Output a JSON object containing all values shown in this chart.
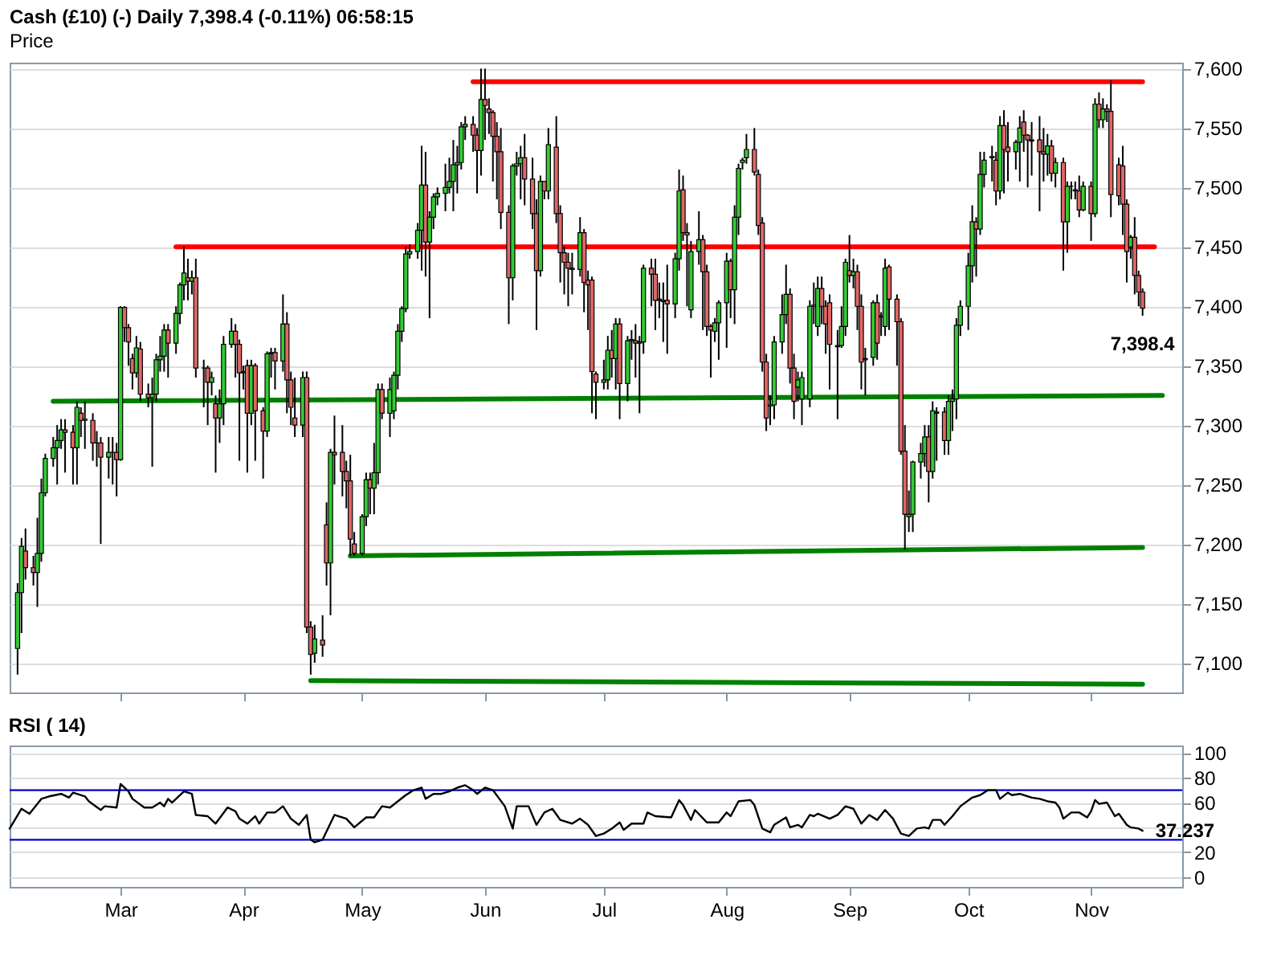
{
  "chart_data": [
    {
      "type": "candlestick",
      "title": "Cash (£10) (-)   Daily   7,398.4 (-0.11%)   06:58:15",
      "subtitle": "Price",
      "x": [
        "--02-03",
        "--02-04",
        "--02-05",
        "--02-07",
        "--02-08",
        "--02-09",
        "--02-10",
        "--02-12",
        "--02-13",
        "--02-14",
        "--02-15",
        "--02-17",
        "--02-18",
        "--02-19",
        "--02-20",
        "--02-22",
        "--02-23",
        "--02-24",
        "--02-26",
        "--02-27",
        "--02-28",
        "--03-01",
        "--03-02",
        "--03-03",
        "--03-04",
        "--03-05",
        "--03-06",
        "--03-08",
        "--03-09",
        "--03-10",
        "--03-11",
        "--03-12",
        "--03-13",
        "--03-15",
        "--03-16",
        "--03-17",
        "--03-18",
        "--03-19",
        "--03-20",
        "--03-22",
        "--03-23",
        "--03-24",
        "--03-25",
        "--03-26",
        "--03-27",
        "--03-29",
        "--03-30",
        "--03-31",
        "--04-01",
        "--04-02",
        "--04-03",
        "--04-04",
        "--04-06",
        "--04-07",
        "--04-08",
        "--04-09",
        "--04-11",
        "--04-12",
        "--04-13",
        "--04-14",
        "--04-16",
        "--04-17",
        "--04-18",
        "--04-19",
        "--04-21",
        "--04-22",
        "--04-23",
        "--04-24",
        "--04-26",
        "--04-27",
        "--04-28",
        "--04-29",
        "--05-01",
        "--05-02",
        "--05-03",
        "--05-04",
        "--05-05",
        "--05-06",
        "--05-08",
        "--05-09",
        "--05-10",
        "--05-11",
        "--05-12",
        "--05-13",
        "--05-15",
        "--05-16",
        "--05-17",
        "--05-18",
        "--05-19",
        "--05-20",
        "--05-22",
        "--05-23",
        "--05-24",
        "--05-25",
        "--05-26",
        "--05-27",
        "--05-29",
        "--05-30",
        "--05-31",
        "--06-01",
        "--06-02",
        "--06-03",
        "--06-04",
        "--06-05",
        "--06-07",
        "--06-08",
        "--06-09",
        "--06-10",
        "--06-11",
        "--06-13",
        "--06-14",
        "--06-15",
        "--06-16",
        "--06-17",
        "--06-19",
        "--06-20",
        "--06-21",
        "--06-22",
        "--06-23",
        "--06-25",
        "--06-26",
        "--06-27",
        "--06-28",
        "--06-29",
        "--07-01",
        "--07-02",
        "--07-03",
        "--07-04",
        "--07-05",
        "--07-07",
        "--07-08",
        "--07-09",
        "--07-10",
        "--07-11",
        "--07-13",
        "--07-14",
        "--07-15",
        "--07-16",
        "--07-17",
        "--07-19",
        "--07-20",
        "--07-21",
        "--07-22",
        "--07-23",
        "--07-25",
        "--07-26",
        "--07-27",
        "--07-28",
        "--07-29",
        "--07-30",
        "--08-01",
        "--08-02",
        "--08-03",
        "--08-04",
        "--08-05",
        "--08-06",
        "--08-08",
        "--08-09",
        "--08-10",
        "--08-11",
        "--08-12",
        "--08-13",
        "--08-15",
        "--08-16",
        "--08-17",
        "--08-18",
        "--08-19",
        "--08-20",
        "--08-22",
        "--08-23",
        "--08-24",
        "--08-25",
        "--08-26",
        "--08-27",
        "--08-29",
        "--08-30",
        "--08-31",
        "--09-01",
        "--09-02",
        "--09-03",
        "--09-04",
        "--09-05",
        "--09-07",
        "--09-08",
        "--09-09",
        "--09-10",
        "--09-11",
        "--09-13",
        "--09-14",
        "--09-15",
        "--09-16",
        "--09-17",
        "--09-19",
        "--09-20",
        "--09-21",
        "--09-22",
        "--09-23",
        "--09-25",
        "--09-26",
        "--09-27",
        "--09-28",
        "--09-29",
        "--10-01",
        "--10-02",
        "--10-03",
        "--10-04",
        "--10-05",
        "--10-07",
        "--10-08",
        "--10-09",
        "--10-10",
        "--10-11",
        "--10-13",
        "--10-14",
        "--10-15",
        "--10-16",
        "--10-17",
        "--10-19",
        "--10-20",
        "--10-21",
        "--10-22",
        "--10-23",
        "--10-25",
        "--10-26",
        "--10-27",
        "--10-28",
        "--10-29",
        "--10-30",
        "--11-01",
        "--11-02",
        "--11-03",
        "--11-04",
        "--11-05",
        "--11-06",
        "--11-08",
        "--11-09",
        "--11-10",
        "--11-11",
        "--11-12",
        "--11-13",
        "--11-14"
      ],
      "ohlc": [
        [
          7112,
          7167,
          7090,
          7159
        ],
        [
          7159,
          7205,
          7125,
          7198
        ],
        [
          7194,
          7213,
          7170,
          7180
        ],
        [
          7180,
          7190,
          7165,
          7176
        ],
        [
          7176,
          7222,
          7147,
          7192
        ],
        [
          7192,
          7255,
          7185,
          7243
        ],
        [
          7243,
          7276,
          7240,
          7272
        ],
        [
          7272,
          7290,
          7265,
          7281
        ],
        [
          7281,
          7300,
          7250,
          7287
        ],
        [
          7287,
          7305,
          7280,
          7296
        ],
        [
          7296,
          7305,
          7260,
          7294
        ],
        [
          7294,
          7300,
          7250,
          7281
        ],
        [
          7281,
          7320,
          7250,
          7315
        ],
        [
          7310,
          7315,
          7290,
          7304
        ],
        [
          7304,
          7320,
          7280,
          7305
        ],
        [
          7304,
          7310,
          7270,
          7285
        ],
        [
          7285,
          7295,
          7265,
          7285
        ],
        [
          7285,
          7290,
          7200,
          7273
        ],
        [
          7273,
          7290,
          7255,
          7277
        ],
        [
          7277,
          7290,
          7250,
          7277
        ],
        [
          7277,
          7285,
          7240,
          7271
        ],
        [
          7271,
          7400,
          7270,
          7399
        ],
        [
          7399,
          7400,
          7370,
          7382
        ],
        [
          7382,
          7385,
          7350,
          7370
        ],
        [
          7356,
          7360,
          7330,
          7344
        ],
        [
          7344,
          7375,
          7340,
          7365
        ],
        [
          7364,
          7370,
          7320,
          7326
        ],
        [
          7326,
          7335,
          7315,
          7323
        ],
        [
          7323,
          7340,
          7265,
          7326
        ],
        [
          7326,
          7360,
          7320,
          7355
        ],
        [
          7355,
          7375,
          7345,
          7358
        ],
        [
          7358,
          7385,
          7345,
          7380
        ],
        [
          7380,
          7385,
          7340,
          7369
        ],
        [
          7369,
          7400,
          7360,
          7394
        ],
        [
          7394,
          7420,
          7385,
          7418
        ],
        [
          7418,
          7450,
          7405,
          7428
        ],
        [
          7424,
          7440,
          7405,
          7421
        ],
        [
          7421,
          7430,
          7410,
          7424
        ],
        [
          7424,
          7440,
          7340,
          7348
        ],
        [
          7348,
          7355,
          7315,
          7348
        ],
        [
          7348,
          7350,
          7300,
          7336
        ],
        [
          7336,
          7345,
          7325,
          7340
        ],
        [
          7318,
          7325,
          7260,
          7306
        ],
        [
          7306,
          7330,
          7285,
          7318
        ],
        [
          7318,
          7375,
          7300,
          7368
        ],
        [
          7368,
          7390,
          7365,
          7379
        ],
        [
          7379,
          7385,
          7340,
          7368
        ],
        [
          7368,
          7372,
          7270,
          7344
        ],
        [
          7344,
          7350,
          7330,
          7345
        ],
        [
          7350,
          7355,
          7260,
          7310
        ],
        [
          7310,
          7355,
          7300,
          7350
        ],
        [
          7350,
          7352,
          7270,
          7312
        ],
        [
          7312,
          7315,
          7255,
          7295
        ],
        [
          7295,
          7362,
          7290,
          7360
        ],
        [
          7360,
          7365,
          7340,
          7361
        ],
        [
          7361,
          7365,
          7330,
          7354
        ],
        [
          7354,
          7410,
          7345,
          7385
        ],
        [
          7385,
          7395,
          7310,
          7338
        ],
        [
          7338,
          7345,
          7300,
          7315
        ],
        [
          7306,
          7340,
          7290,
          7300
        ],
        [
          7300,
          7345,
          7290,
          7340
        ],
        [
          7340,
          7345,
          7125,
          7130
        ],
        [
          7130,
          7135,
          7090,
          7107
        ],
        [
          7108,
          7132,
          7100,
          7120
        ],
        [
          7119,
          7140,
          7105,
          7115
        ],
        [
          7216,
          7235,
          7165,
          7184
        ],
        [
          7184,
          7280,
          7140,
          7277
        ],
        [
          7277,
          7308,
          7250,
          7275
        ],
        [
          7277,
          7300,
          7240,
          7261
        ],
        [
          7261,
          7270,
          7230,
          7253
        ],
        [
          7253,
          7275,
          7190,
          7204
        ],
        [
          7200,
          7210,
          7190,
          7192
        ],
        [
          7192,
          7225,
          7190,
          7223
        ],
        [
          7223,
          7260,
          7215,
          7254
        ],
        [
          7254,
          7260,
          7225,
          7247
        ],
        [
          7247,
          7285,
          7225,
          7260
        ],
        [
          7260,
          7335,
          7250,
          7330
        ],
        [
          7330,
          7335,
          7305,
          7310
        ],
        [
          7310,
          7340,
          7290,
          7330
        ],
        [
          7312,
          7345,
          7305,
          7342
        ],
        [
          7342,
          7385,
          7330,
          7379
        ],
        [
          7379,
          7400,
          7370,
          7398
        ],
        [
          7398,
          7450,
          7395,
          7444
        ],
        [
          7444,
          7452,
          7440,
          7446
        ],
        [
          7446,
          7470,
          7440,
          7464
        ],
        [
          7464,
          7535,
          7430,
          7502
        ],
        [
          7502,
          7530,
          7425,
          7454
        ],
        [
          7454,
          7480,
          7390,
          7475
        ],
        [
          7475,
          7495,
          7465,
          7492
        ],
        [
          7492,
          7500,
          7485,
          7495
        ],
        [
          7495,
          7520,
          7480,
          7500
        ],
        [
          7500,
          7525,
          7495,
          7505
        ],
        [
          7505,
          7540,
          7480,
          7519
        ],
        [
          7519,
          7535,
          7495,
          7521
        ],
        [
          7521,
          7555,
          7515,
          7551
        ],
        [
          7551,
          7560,
          7540,
          7553
        ],
        [
          7553,
          7560,
          7530,
          7544
        ],
        [
          7544,
          7550,
          7495,
          7531
        ],
        [
          7531,
          7600,
          7510,
          7574
        ],
        [
          7574,
          7600,
          7540,
          7569
        ],
        [
          7566,
          7575,
          7545,
          7563
        ],
        [
          7563,
          7565,
          7505,
          7543
        ],
        [
          7543,
          7555,
          7490,
          7530
        ],
        [
          7530,
          7550,
          7465,
          7479
        ],
        [
          7479,
          7485,
          7385,
          7424
        ],
        [
          7424,
          7520,
          7405,
          7518
        ],
        [
          7518,
          7530,
          7510,
          7520
        ],
        [
          7520,
          7535,
          7490,
          7525
        ],
        [
          7525,
          7545,
          7485,
          7507
        ],
        [
          7507,
          7525,
          7465,
          7478
        ],
        [
          7478,
          7490,
          7380,
          7430
        ],
        [
          7430,
          7510,
          7425,
          7505
        ],
        [
          7505,
          7505,
          7490,
          7497
        ],
        [
          7497,
          7550,
          7490,
          7536
        ],
        [
          7534,
          7560,
          7470,
          7478
        ],
        [
          7478,
          7485,
          7420,
          7445
        ],
        [
          7445,
          7450,
          7410,
          7437
        ],
        [
          7437,
          7445,
          7400,
          7432
        ],
        [
          7432,
          7445,
          7410,
          7431
        ],
        [
          7431,
          7475,
          7425,
          7462
        ],
        [
          7462,
          7465,
          7395,
          7420
        ],
        [
          7422,
          7430,
          7380,
          7418
        ],
        [
          7422,
          7425,
          7310,
          7345
        ],
        [
          7343,
          7345,
          7305,
          7336
        ],
        [
          7336,
          7355,
          7330,
          7338
        ],
        [
          7338,
          7375,
          7330,
          7363
        ],
        [
          7363,
          7380,
          7340,
          7356
        ],
        [
          7356,
          7390,
          7330,
          7385
        ],
        [
          7385,
          7390,
          7305,
          7335
        ],
        [
          7335,
          7375,
          7320,
          7371
        ],
        [
          7371,
          7380,
          7355,
          7372
        ],
        [
          7371,
          7385,
          7340,
          7369
        ],
        [
          7369,
          7375,
          7310,
          7370
        ],
        [
          7370,
          7435,
          7360,
          7432
        ],
        [
          7432,
          7440,
          7400,
          7427
        ],
        [
          7427,
          7440,
          7380,
          7405
        ],
        [
          7405,
          7420,
          7390,
          7406
        ],
        [
          7404,
          7420,
          7370,
          7405
        ],
        [
          7405,
          7435,
          7360,
          7402
        ],
        [
          7402,
          7445,
          7390,
          7440
        ],
        [
          7440,
          7515,
          7430,
          7497
        ],
        [
          7498,
          7510,
          7455,
          7462
        ],
        [
          7462,
          7470,
          7400,
          7460
        ],
        [
          7397,
          7455,
          7390,
          7446
        ],
        [
          7446,
          7480,
          7435,
          7456
        ],
        [
          7456,
          7460,
          7380,
          7429
        ],
        [
          7429,
          7435,
          7375,
          7383
        ],
        [
          7383,
          7385,
          7340,
          7380
        ],
        [
          7379,
          7390,
          7370,
          7386
        ],
        [
          7386,
          7405,
          7355,
          7403
        ],
        [
          7403,
          7445,
          7365,
          7438
        ],
        [
          7438,
          7440,
          7390,
          7414
        ],
        [
          7414,
          7485,
          7385,
          7475
        ],
        [
          7475,
          7520,
          7460,
          7516
        ],
        [
          7521,
          7525,
          7515,
          7523
        ],
        [
          7525,
          7545,
          7520,
          7532
        ],
        [
          7532,
          7550,
          7510,
          7513
        ],
        [
          7511,
          7515,
          7460,
          7468
        ],
        [
          7470,
          7475,
          7345,
          7353
        ],
        [
          7353,
          7360,
          7295,
          7306
        ],
        [
          7316,
          7325,
          7300,
          7317
        ],
        [
          7317,
          7375,
          7305,
          7370
        ],
        [
          7370,
          7410,
          7360,
          7393
        ],
        [
          7393,
          7435,
          7385,
          7410
        ],
        [
          7410,
          7415,
          7335,
          7348
        ],
        [
          7348,
          7360,
          7305,
          7320
        ],
        [
          7332,
          7345,
          7320,
          7338
        ],
        [
          7322,
          7345,
          7300,
          7340
        ],
        [
          7322,
          7405,
          7315,
          7400
        ],
        [
          7400,
          7420,
          7385,
          7401
        ],
        [
          7383,
          7425,
          7375,
          7415
        ],
        [
          7415,
          7425,
          7385,
          7400
        ],
        [
          7400,
          7405,
          7360,
          7385
        ],
        [
          7403,
          7410,
          7330,
          7368
        ],
        [
          7366,
          7380,
          7305,
          7367
        ],
        [
          7367,
          7400,
          7365,
          7383
        ],
        [
          7383,
          7440,
          7375,
          7437
        ],
        [
          7430,
          7460,
          7420,
          7426
        ],
        [
          7426,
          7440,
          7415,
          7429
        ],
        [
          7429,
          7435,
          7380,
          7400
        ],
        [
          7400,
          7410,
          7330,
          7353
        ],
        [
          7356,
          7365,
          7325,
          7355
        ],
        [
          7357,
          7405,
          7350,
          7403
        ],
        [
          7403,
          7410,
          7355,
          7369
        ],
        [
          7391,
          7395,
          7375,
          7392
        ],
        [
          7383,
          7440,
          7375,
          7432
        ],
        [
          7433,
          7435,
          7380,
          7406
        ],
        [
          7406,
          7410,
          7350,
          7387
        ],
        [
          7387,
          7390,
          7275,
          7278
        ],
        [
          7278,
          7300,
          7195,
          7225
        ],
        [
          7223,
          7245,
          7210,
          7225
        ],
        [
          7225,
          7270,
          7210,
          7269
        ],
        [
          7269,
          7285,
          7255,
          7276
        ],
        [
          7276,
          7300,
          7265,
          7290
        ],
        [
          7290,
          7300,
          7235,
          7261
        ],
        [
          7261,
          7320,
          7255,
          7312
        ],
        [
          7310,
          7315,
          7270,
          7311
        ],
        [
          7311,
          7315,
          7275,
          7287
        ],
        [
          7287,
          7325,
          7275,
          7320
        ],
        [
          7320,
          7330,
          7295,
          7322
        ],
        [
          7322,
          7390,
          7305,
          7384
        ],
        [
          7384,
          7405,
          7375,
          7400
        ],
        [
          7400,
          7445,
          7380,
          7434
        ],
        [
          7434,
          7485,
          7420,
          7471
        ],
        [
          7471,
          7475,
          7425,
          7465
        ],
        [
          7465,
          7530,
          7460,
          7511
        ],
        [
          7511,
          7530,
          7500,
          7523
        ],
        [
          7525,
          7535,
          7505,
          7526
        ],
        [
          7523,
          7530,
          7485,
          7497
        ],
        [
          7497,
          7560,
          7490,
          7552
        ],
        [
          7552,
          7565,
          7495,
          7532
        ],
        [
          7534,
          7555,
          7505,
          7530
        ],
        [
          7530,
          7540,
          7515,
          7538
        ],
        [
          7538,
          7560,
          7505,
          7550
        ],
        [
          7555,
          7565,
          7530,
          7544
        ],
        [
          7544,
          7545,
          7500,
          7540
        ],
        [
          7540,
          7555,
          7510,
          7539
        ],
        [
          7540,
          7560,
          7480,
          7530
        ],
        [
          7530,
          7550,
          7505,
          7528
        ],
        [
          7528,
          7545,
          7510,
          7535
        ],
        [
          7535,
          7540,
          7505,
          7512
        ],
        [
          7512,
          7525,
          7500,
          7521
        ],
        [
          7521,
          7525,
          7430,
          7471
        ],
        [
          7471,
          7505,
          7445,
          7501
        ],
        [
          7501,
          7505,
          7490,
          7501
        ],
        [
          7498,
          7505,
          7490,
          7497
        ],
        [
          7497,
          7510,
          7475,
          7481
        ],
        [
          7481,
          7505,
          7480,
          7501
        ],
        [
          7501,
          7505,
          7455,
          7478
        ],
        [
          7478,
          7575,
          7475,
          7570
        ],
        [
          7570,
          7580,
          7550,
          7557
        ],
        [
          7557,
          7575,
          7550,
          7566
        ],
        [
          7566,
          7570,
          7555,
          7564
        ],
        [
          7564,
          7590,
          7475,
          7494
        ],
        [
          7519,
          7525,
          7485,
          7493
        ],
        [
          7518,
          7535,
          7460,
          7486
        ],
        [
          7486,
          7490,
          7420,
          7446
        ],
        [
          7450,
          7460,
          7440,
          7458
        ],
        [
          7458,
          7475,
          7410,
          7426
        ],
        [
          7426,
          7430,
          7400,
          7412
        ],
        [
          7412,
          7415,
          7392,
          7398.4
        ]
      ],
      "series": [
        {
          "type": "line",
          "x": [
            "--05-29",
            "--11-14"
          ],
          "values": [
            7589,
            7589
          ],
          "color": "#ff0000"
        },
        {
          "type": "line",
          "x": [
            "--03-15",
            "--11-17"
          ],
          "values": [
            7450,
            7450
          ],
          "color": "#ff0000"
        },
        {
          "type": "line",
          "x": [
            "--02-12",
            "--11-19"
          ],
          "values": [
            7320,
            7325
          ],
          "color": "#008000"
        },
        {
          "type": "line",
          "x": [
            "--04-28",
            "--11-14"
          ],
          "values": [
            7190,
            7197
          ],
          "color": "#008000"
        },
        {
          "type": "line",
          "x": [
            "--04-18",
            "--11-14"
          ],
          "values": [
            7085,
            7082
          ],
          "color": "#008000"
        }
      ],
      "xlim": [
        "--02-01",
        "--11-24"
      ],
      "ylim": [
        7075,
        7605
      ],
      "xticks": [
        {
          "value": "--03-01",
          "label": "Mar"
        },
        {
          "value": "--04-01",
          "label": "Apr"
        },
        {
          "value": "--05-01",
          "label": "May"
        },
        {
          "value": "--06-01",
          "label": "Jun"
        },
        {
          "value": "--07-01",
          "label": "Jul"
        },
        {
          "value": "--08-01",
          "label": "Aug"
        },
        {
          "value": "--09-01",
          "label": "Sep"
        },
        {
          "value": "--10-01",
          "label": "Oct"
        },
        {
          "value": "--11-01",
          "label": "Nov"
        }
      ],
      "yticks": [
        {
          "value": 7100,
          "label": "7,100"
        },
        {
          "value": 7150,
          "label": "7,150"
        },
        {
          "value": 7200,
          "label": "7,200"
        },
        {
          "value": 7250,
          "label": "7,250"
        },
        {
          "value": 7300,
          "label": "7,300"
        },
        {
          "value": 7350,
          "label": "7,350"
        },
        {
          "value": 7400,
          "label": "7,400"
        },
        {
          "value": 7450,
          "label": "7,450"
        },
        {
          "value": 7500,
          "label": "7,500"
        },
        {
          "value": 7550,
          "label": "7,550"
        },
        {
          "value": 7600,
          "label": "7,600"
        }
      ],
      "grid": "y",
      "tick_labels": "y",
      "annotations": [
        {
          "text": "7,398.4",
          "x": "--11-14",
          "y": 7398.4
        }
      ]
    },
    {
      "type": "line",
      "title": "RSI ( 14)",
      "x": [
        "--02-01",
        "--02-04",
        "--02-06",
        "--02-09",
        "--02-11",
        "--02-14",
        "--02-16",
        "--02-17",
        "--02-20",
        "--02-21",
        "--02-24",
        "--02-25",
        "--02-28",
        "--03-01",
        "--03-03",
        "--03-04",
        "--03-07",
        "--03-09",
        "--03-11",
        "--03-12",
        "--03-13",
        "--03-14",
        "--03-17",
        "--03-19",
        "--03-20",
        "--03-23",
        "--03-25",
        "--03-28",
        "--03-30",
        "--03-31",
        "--04-02",
        "--04-04",
        "--04-05",
        "--04-07",
        "--04-09",
        "--04-11",
        "--04-13",
        "--04-15",
        "--04-17",
        "--04-18",
        "--04-19",
        "--04-21",
        "--04-24",
        "--04-27",
        "--04-29",
        "--05-02",
        "--05-04",
        "--05-06",
        "--05-08",
        "--05-10",
        "--05-12",
        "--05-14",
        "--05-16",
        "--05-17",
        "--05-19",
        "--05-21",
        "--05-23",
        "--05-25",
        "--05-27",
        "--05-29",
        "--05-30",
        "--06-01",
        "--06-03",
        "--06-06",
        "--06-08",
        "--06-09",
        "--06-12",
        "--06-14",
        "--06-16",
        "--06-18",
        "--06-20",
        "--06-23",
        "--06-25",
        "--06-27",
        "--06-29",
        "--07-01",
        "--07-03",
        "--07-05",
        "--07-06",
        "--07-08",
        "--07-11",
        "--07-12",
        "--07-14",
        "--07-18",
        "--07-20",
        "--07-21",
        "--07-23",
        "--07-24",
        "--07-27",
        "--07-30",
        "--08-01",
        "--08-02",
        "--08-04",
        "--08-07",
        "--08-08",
        "--08-10",
        "--08-12",
        "--08-13",
        "--08-16",
        "--08-17",
        "--08-19",
        "--08-20",
        "--08-22",
        "--08-23",
        "--08-24",
        "--08-27",
        "--08-29",
        "--08-31",
        "--09-02",
        "--09-04",
        "--09-06",
        "--09-08",
        "--09-10",
        "--09-12",
        "--09-14",
        "--09-16",
        "--09-18",
        "--09-20",
        "--09-21",
        "--09-22",
        "--09-24",
        "--09-25",
        "--09-27",
        "--09-29",
        "--10-02",
        "--10-04",
        "--10-06",
        "--10-08",
        "--10-09",
        "--10-11",
        "--10-12",
        "--10-14",
        "--10-17",
        "--10-19",
        "--10-21",
        "--10-23",
        "--10-24",
        "--10-25",
        "--10-27",
        "--10-29",
        "--10-31",
        "--11-01",
        "--11-02",
        "--11-03",
        "--11-05",
        "--11-07",
        "--11-08",
        "--11-10",
        "--11-11",
        "--11-13",
        "--11-14"
      ],
      "values": [
        39,
        55,
        51,
        63,
        65,
        67,
        64,
        68,
        65,
        61,
        54,
        57,
        56,
        75,
        69,
        63,
        56,
        56,
        60,
        57,
        63,
        60,
        69,
        67,
        50,
        49,
        43,
        56,
        53,
        47,
        43,
        49,
        43,
        52,
        52,
        57,
        47,
        42,
        50,
        30,
        28,
        30,
        50,
        47,
        40,
        48,
        48,
        57,
        56,
        61,
        66,
        70,
        72,
        63,
        67,
        67,
        69,
        72,
        74,
        70,
        67,
        72,
        70,
        57,
        39,
        57,
        57,
        42,
        52,
        55,
        46,
        43,
        47,
        42,
        33,
        35,
        39,
        44,
        38,
        43,
        43,
        52,
        49,
        48,
        62,
        58,
        46,
        54,
        44,
        44,
        52,
        49,
        61,
        62,
        58,
        39,
        36,
        42,
        48,
        40,
        42,
        40,
        50,
        49,
        51,
        47,
        50,
        57,
        55,
        43,
        50,
        46,
        54,
        47,
        35,
        33,
        39,
        40,
        39,
        46,
        46,
        42,
        49,
        57,
        64,
        66,
        70,
        70,
        63,
        68,
        66,
        67,
        64,
        63,
        61,
        60,
        56,
        47,
        52,
        52,
        48,
        53,
        62,
        59,
        60,
        49,
        51,
        42,
        40,
        39,
        37.237
      ],
      "color": "#000000",
      "xlim": [
        "--02-01",
        "--11-24"
      ],
      "xticks": [
        {
          "value": "--03-01",
          "label": "Mar"
        },
        {
          "value": "--04-01",
          "label": "Apr"
        },
        {
          "value": "--05-01",
          "label": "May"
        },
        {
          "value": "--06-01",
          "label": "Jun"
        },
        {
          "value": "--07-01",
          "label": "Jul"
        },
        {
          "value": "--08-01",
          "label": "Aug"
        },
        {
          "value": "--09-01",
          "label": "Sep"
        },
        {
          "value": "--10-01",
          "label": "Oct"
        },
        {
          "value": "--11-01",
          "label": "Nov"
        }
      ],
      "ylim": [
        -8,
        106
      ],
      "yticks": [
        0,
        20,
        {
          "value": 40,
          "label": null
        },
        60,
        80,
        100
      ],
      "grid": "y",
      "ref_lines": [
        {
          "axis": "y",
          "value": 70,
          "color": "#0000cc"
        },
        {
          "axis": "y",
          "value": 30,
          "color": "#0000cc"
        }
      ],
      "annotations": [
        {
          "text": "37.237",
          "x": "--11-14",
          "y": 37.237
        }
      ]
    }
  ]
}
